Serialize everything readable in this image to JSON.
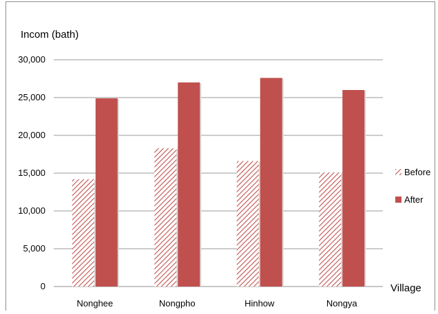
{
  "chart_data": {
    "type": "bar",
    "ylabel": "Incom (bath)",
    "xlabel": "Village",
    "categories": [
      "Nonghee",
      "Nongpho",
      "Hinhow",
      "Nongya"
    ],
    "ylim": [
      0,
      30000
    ],
    "yticks": [
      0,
      5000,
      10000,
      15000,
      20000,
      25000,
      30000
    ],
    "ytick_labels": [
      "0",
      "5,000",
      "10,000",
      "15,000",
      "20,000",
      "25,000",
      "30,000"
    ],
    "grid": true,
    "legend_position": "right",
    "series": [
      {
        "name": "Before",
        "values": [
          14200,
          18300,
          16600,
          15100
        ],
        "color": "#c0504d",
        "pattern": "diagonal-hatch"
      },
      {
        "name": "After",
        "values": [
          24900,
          27000,
          27600,
          26000
        ],
        "color": "#c0504d",
        "pattern": "solid"
      }
    ]
  }
}
